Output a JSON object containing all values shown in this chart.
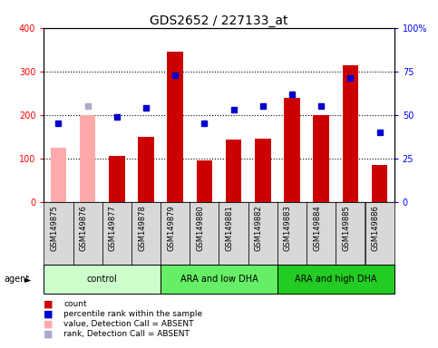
{
  "title": "GDS2652 / 227133_at",
  "samples": [
    "GSM149875",
    "GSM149876",
    "GSM149877",
    "GSM149878",
    "GSM149879",
    "GSM149880",
    "GSM149881",
    "GSM149882",
    "GSM149883",
    "GSM149884",
    "GSM149885",
    "GSM149886"
  ],
  "bar_values": [
    125,
    200,
    105,
    150,
    345,
    95,
    143,
    145,
    238,
    200,
    315,
    85
  ],
  "bar_absent": [
    true,
    true,
    false,
    false,
    false,
    false,
    false,
    false,
    false,
    false,
    false,
    false
  ],
  "percentile_values": [
    45,
    55,
    49,
    54,
    73,
    45,
    53,
    55,
    62,
    55,
    71,
    40
  ],
  "percentile_absent": [
    false,
    true,
    false,
    false,
    false,
    false,
    false,
    false,
    false,
    false,
    false,
    false
  ],
  "bar_color_normal": "#cc0000",
  "bar_color_absent": "#ffaaaa",
  "dot_color_normal": "#0000cc",
  "dot_color_absent": "#aaaacc",
  "ylim_left": [
    0,
    400
  ],
  "ylim_right": [
    0,
    100
  ],
  "yticks_left": [
    0,
    100,
    200,
    300,
    400
  ],
  "yticks_right": [
    0,
    25,
    50,
    75,
    100
  ],
  "ytick_labels_right": [
    "0",
    "25",
    "50",
    "75",
    "100%"
  ],
  "ytick_labels_right_top": "100%",
  "groups": [
    {
      "label": "control",
      "start": 0,
      "end": 3,
      "color": "#ccffcc"
    },
    {
      "label": "ARA and low DHA",
      "start": 4,
      "end": 7,
      "color": "#66ee66"
    },
    {
      "label": "ARA and high DHA",
      "start": 8,
      "end": 11,
      "color": "#22cc22"
    }
  ],
  "agent_label": "agent",
  "title_fontsize": 10,
  "tick_fontsize": 7,
  "bar_width": 0.55,
  "legend_items": [
    {
      "color": "#cc0000",
      "label": "count"
    },
    {
      "color": "#0000cc",
      "label": "percentile rank within the sample"
    },
    {
      "color": "#ffaaaa",
      "label": "value, Detection Call = ABSENT"
    },
    {
      "color": "#aaaacc",
      "label": "rank, Detection Call = ABSENT"
    }
  ]
}
